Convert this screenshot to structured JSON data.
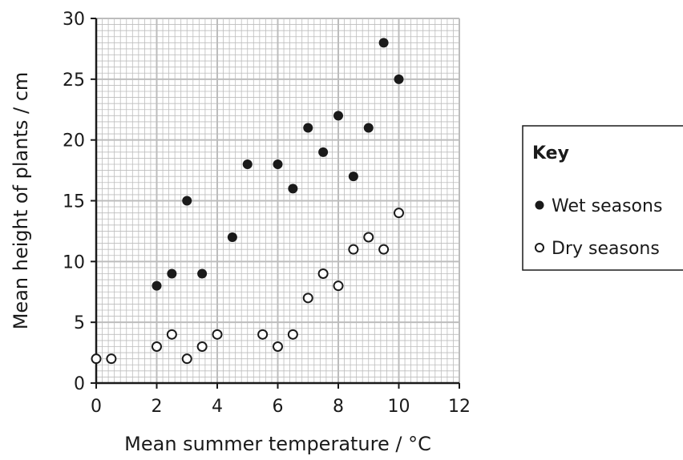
{
  "chart_data": {
    "type": "scatter",
    "xlabel": "Mean summer temperature / °C",
    "ylabel": "Mean height of plants / cm",
    "xlim": [
      0,
      12
    ],
    "ylim": [
      0,
      30
    ],
    "x_ticks": [
      0,
      2,
      4,
      6,
      8,
      10,
      12
    ],
    "y_ticks": [
      0,
      5,
      10,
      15,
      20,
      25,
      30
    ],
    "grid": true,
    "legend_placement": "right",
    "legend_title": "Key",
    "series": [
      {
        "name": "Wet seasons",
        "marker": "filled-circle",
        "points": [
          {
            "x": 2,
            "y": 8
          },
          {
            "x": 2.5,
            "y": 9
          },
          {
            "x": 3,
            "y": 15
          },
          {
            "x": 3.5,
            "y": 9
          },
          {
            "x": 4.5,
            "y": 12
          },
          {
            "x": 5,
            "y": 18
          },
          {
            "x": 6,
            "y": 18
          },
          {
            "x": 6.5,
            "y": 16
          },
          {
            "x": 7,
            "y": 21
          },
          {
            "x": 7.5,
            "y": 19
          },
          {
            "x": 8,
            "y": 22
          },
          {
            "x": 8.5,
            "y": 17
          },
          {
            "x": 9,
            "y": 21
          },
          {
            "x": 9.5,
            "y": 28
          },
          {
            "x": 10,
            "y": 25
          }
        ]
      },
      {
        "name": "Dry seasons",
        "marker": "open-circle",
        "points": [
          {
            "x": 0,
            "y": 2
          },
          {
            "x": 0.5,
            "y": 2
          },
          {
            "x": 2,
            "y": 3
          },
          {
            "x": 2.5,
            "y": 4
          },
          {
            "x": 3,
            "y": 2
          },
          {
            "x": 3.5,
            "y": 3
          },
          {
            "x": 4,
            "y": 4
          },
          {
            "x": 5.5,
            "y": 4
          },
          {
            "x": 6,
            "y": 3
          },
          {
            "x": 6.5,
            "y": 4
          },
          {
            "x": 7,
            "y": 7
          },
          {
            "x": 7.5,
            "y": 9
          },
          {
            "x": 8,
            "y": 8
          },
          {
            "x": 8.5,
            "y": 11
          },
          {
            "x": 9,
            "y": 12
          },
          {
            "x": 9.5,
            "y": 11
          },
          {
            "x": 10,
            "y": 14
          }
        ]
      }
    ],
    "colors": {
      "ink": "#1a1a1a",
      "grid": "#bdbdbd",
      "background": "#ffffff"
    }
  }
}
